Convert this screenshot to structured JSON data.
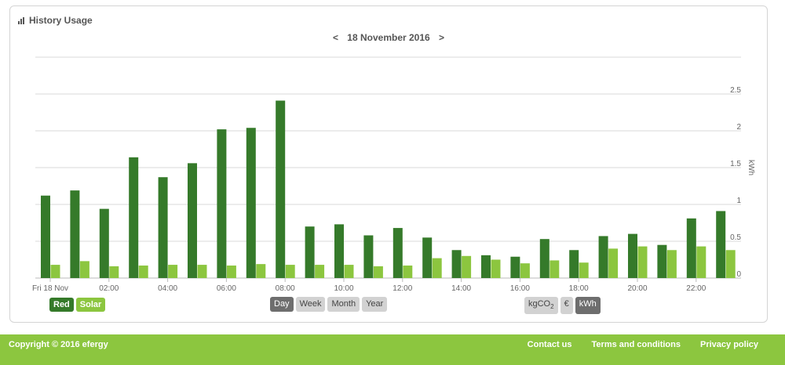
{
  "panel": {
    "title": "History Usage"
  },
  "date_nav": {
    "prev": "<",
    "label": "18 November 2016",
    "next": ">"
  },
  "legend": [
    {
      "label": "Red",
      "color": "#357a2a"
    },
    {
      "label": "Solar",
      "color": "#8cc63f"
    }
  ],
  "period_buttons": [
    {
      "label": "Day",
      "active": true
    },
    {
      "label": "Week",
      "active": false
    },
    {
      "label": "Month",
      "active": false
    },
    {
      "label": "Year",
      "active": false
    }
  ],
  "unit_buttons": [
    {
      "label": "kgCO",
      "sub": "2",
      "active": false
    },
    {
      "label": "€",
      "sub": "",
      "active": false
    },
    {
      "label": "kWh",
      "sub": "",
      "active": true
    }
  ],
  "footer": {
    "copyright": "Copyright © 2016 efergy",
    "links": [
      "Contact us",
      "Terms and conditions",
      "Privacy policy"
    ]
  },
  "chart_data": {
    "type": "bar",
    "ylabel": "kWh",
    "ylim": [
      0,
      3
    ],
    "yticks": [
      {
        "value": 0,
        "label": "0"
      },
      {
        "value": 0.5,
        "label": "0.5"
      },
      {
        "value": 1,
        "label": "1"
      },
      {
        "value": 1.5,
        "label": "1.5"
      },
      {
        "value": 2,
        "label": "2"
      },
      {
        "value": 2.5,
        "label": "2.5"
      },
      {
        "value": 3,
        "label": ""
      }
    ],
    "axis_position": "right",
    "grid": true,
    "xtick_labels": [
      {
        "hour": 0,
        "label": "Fri 18 Nov"
      },
      {
        "hour": 2,
        "label": "02:00"
      },
      {
        "hour": 4,
        "label": "04:00"
      },
      {
        "hour": 6,
        "label": "06:00"
      },
      {
        "hour": 8,
        "label": "08:00"
      },
      {
        "hour": 10,
        "label": "10:00"
      },
      {
        "hour": 12,
        "label": "12:00"
      },
      {
        "hour": 14,
        "label": "14:00"
      },
      {
        "hour": 16,
        "label": "16:00"
      },
      {
        "hour": 18,
        "label": "18:00"
      },
      {
        "hour": 20,
        "label": "20:00"
      },
      {
        "hour": 22,
        "label": "22:00"
      }
    ],
    "series": [
      {
        "name": "Red",
        "color": "#357a2a",
        "values": [
          1.12,
          1.19,
          0.94,
          1.64,
          1.37,
          1.56,
          2.02,
          2.04,
          2.41,
          0.7,
          0.73,
          0.58,
          0.68,
          0.55,
          0.38,
          0.31,
          0.29,
          0.53,
          0.38,
          0.57,
          0.6,
          0.45,
          0.81,
          0.91
        ]
      },
      {
        "name": "Solar",
        "color": "#8cc63f",
        "values": [
          0.18,
          0.23,
          0.16,
          0.17,
          0.18,
          0.18,
          0.17,
          0.19,
          0.18,
          0.18,
          0.18,
          0.16,
          0.17,
          0.27,
          0.3,
          0.25,
          0.2,
          0.24,
          0.21,
          0.4,
          0.43,
          0.38,
          0.43,
          0.38
        ]
      }
    ]
  }
}
